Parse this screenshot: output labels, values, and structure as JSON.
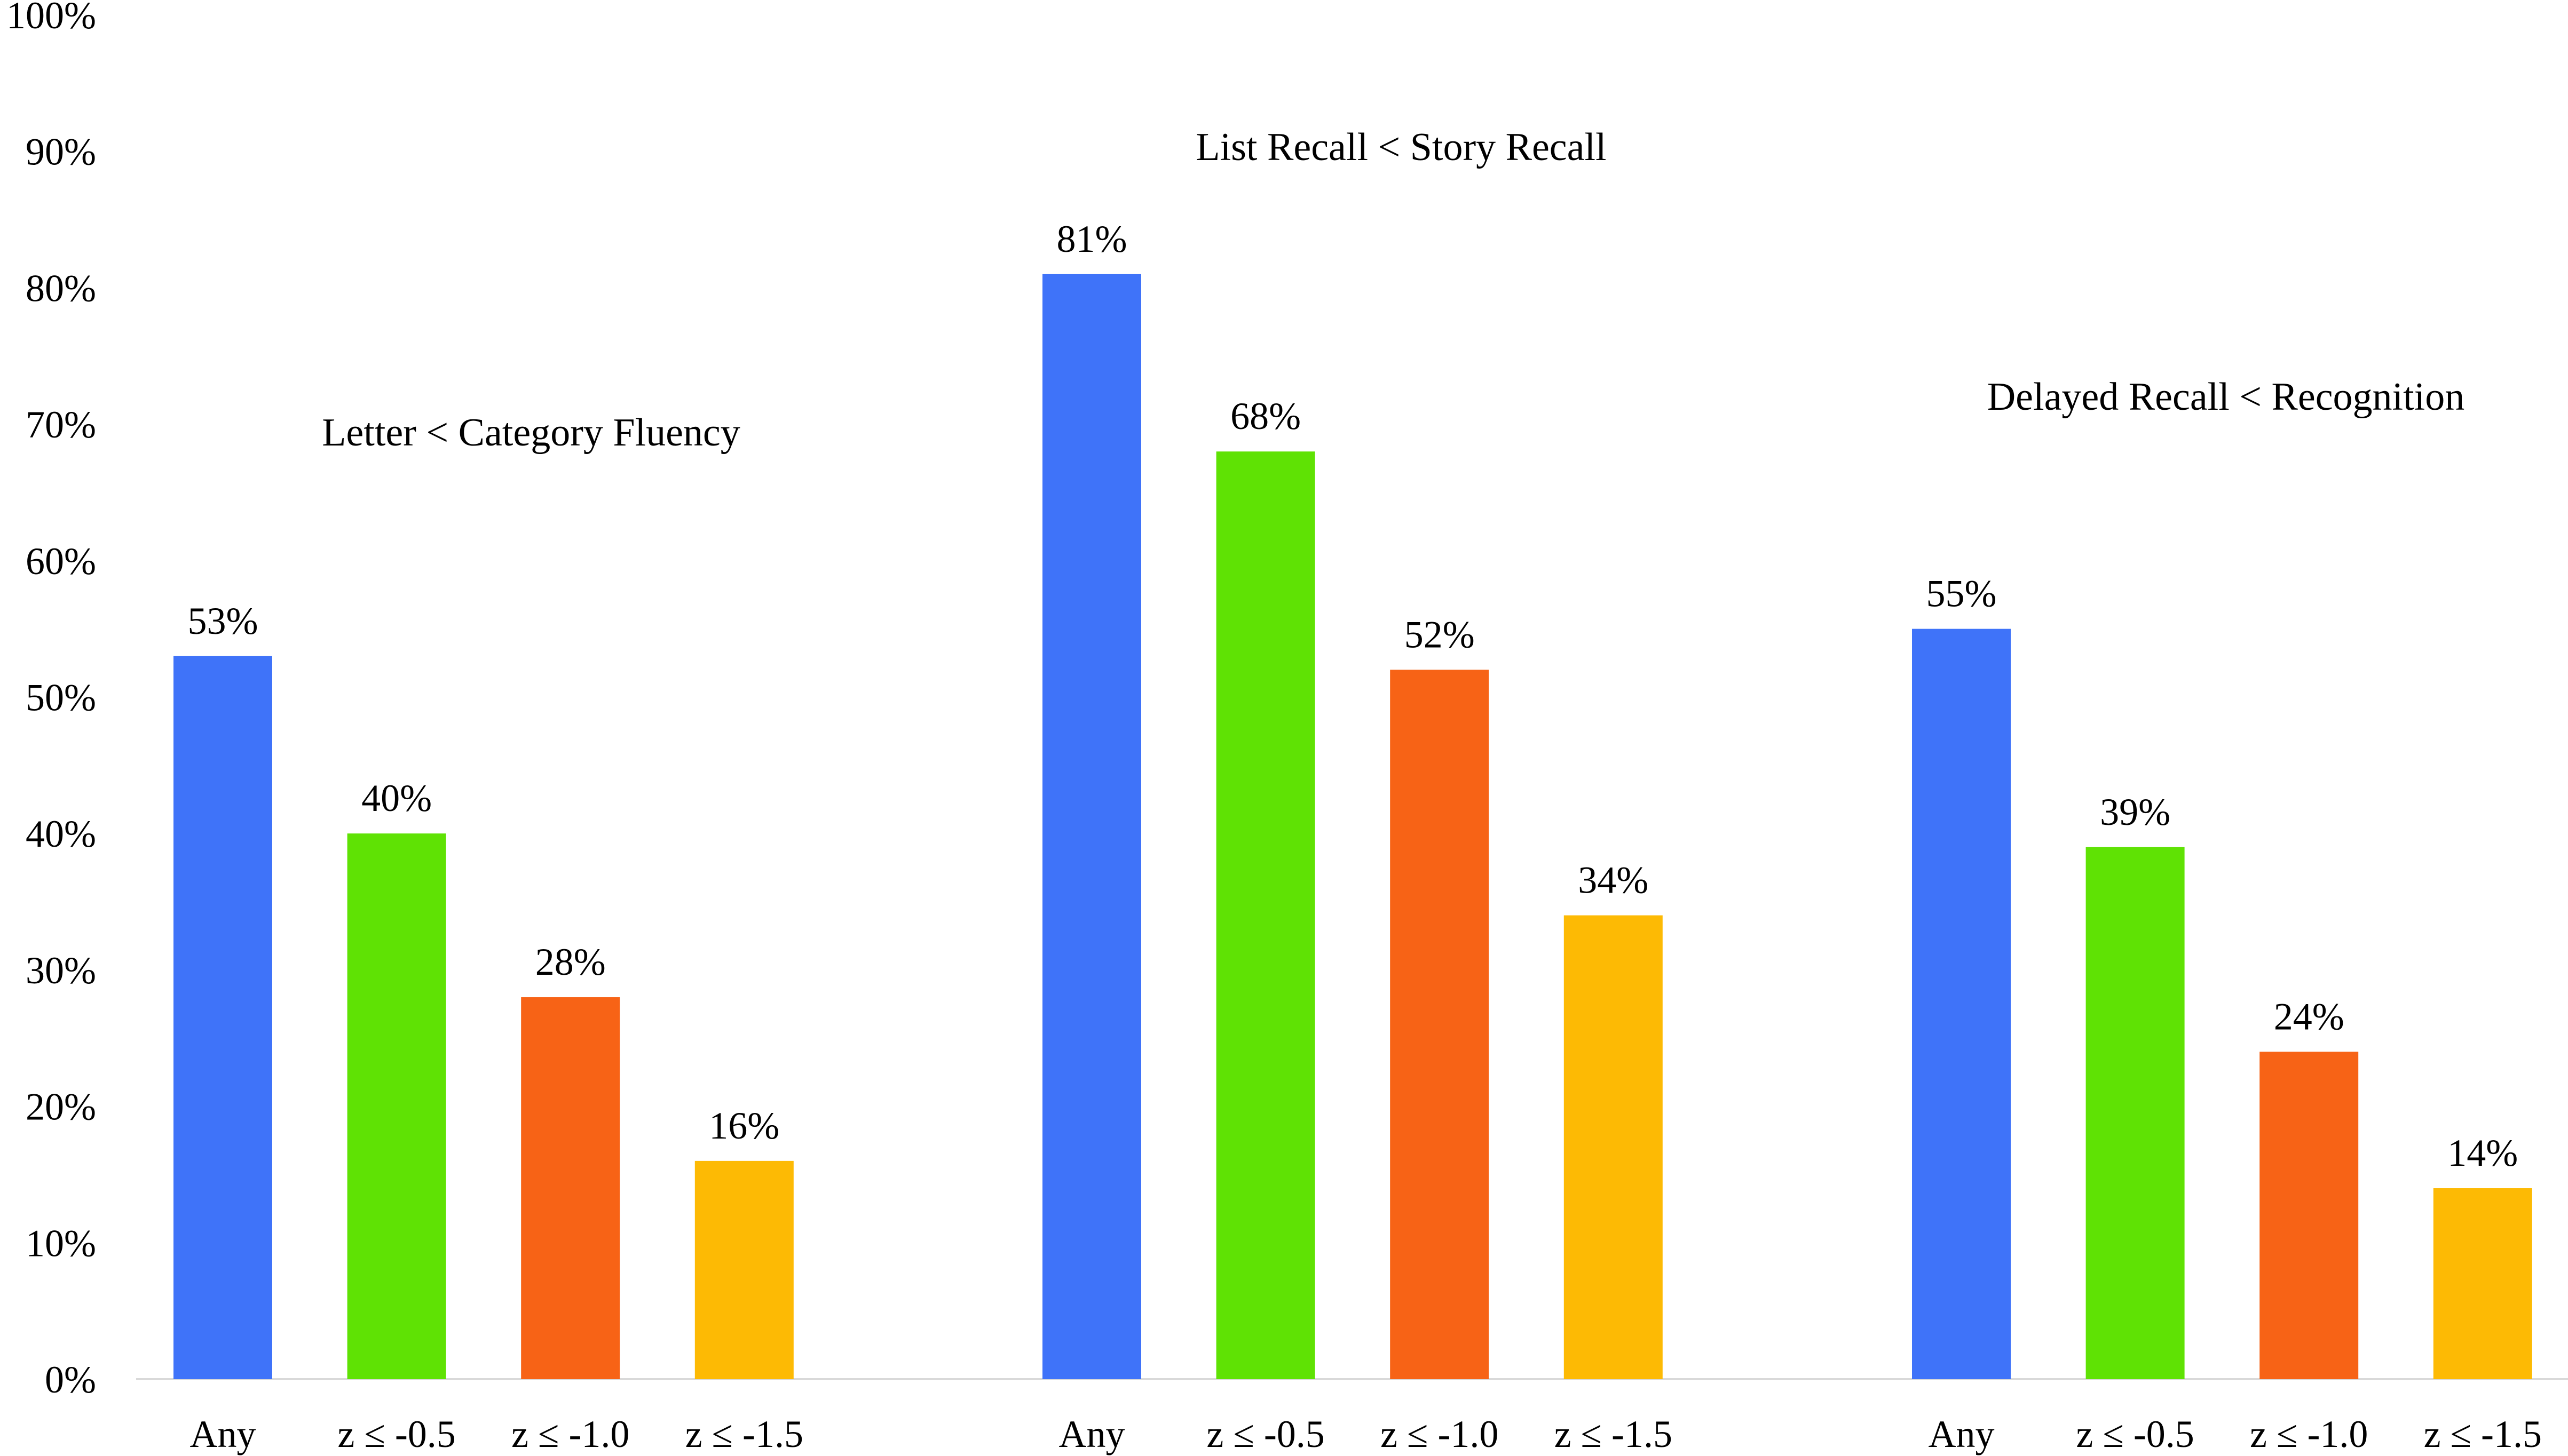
{
  "chart_data": {
    "type": "bar",
    "title": "",
    "xlabel": "",
    "ylabel": "",
    "ylim": [
      0,
      100
    ],
    "y_ticks": [
      "0%",
      "10%",
      "20%",
      "30%",
      "40%",
      "50%",
      "60%",
      "70%",
      "80%",
      "90%",
      "100%"
    ],
    "categories": [
      "Any",
      "z ≤ -0.5",
      "z ≤ -1.0",
      "z ≤ -1.5"
    ],
    "colors": [
      "#3F73F9",
      "#5FE204",
      "#F76316",
      "#FDBA04"
    ],
    "grid": false,
    "legend": "none",
    "groups": [
      {
        "name": "Letter < Category Fluency",
        "values": [
          53,
          40,
          28,
          16
        ],
        "labels": [
          "53%",
          "40%",
          "28%",
          "16%"
        ]
      },
      {
        "name": "List Recall < Story Recall",
        "values": [
          81,
          68,
          52,
          34
        ],
        "labels": [
          "81%",
          "68%",
          "52%",
          "34%"
        ]
      },
      {
        "name": "Delayed Recall < Recognition",
        "values": [
          55,
          39,
          24,
          14
        ],
        "labels": [
          "55%",
          "39%",
          "24%",
          "14%"
        ]
      }
    ]
  }
}
